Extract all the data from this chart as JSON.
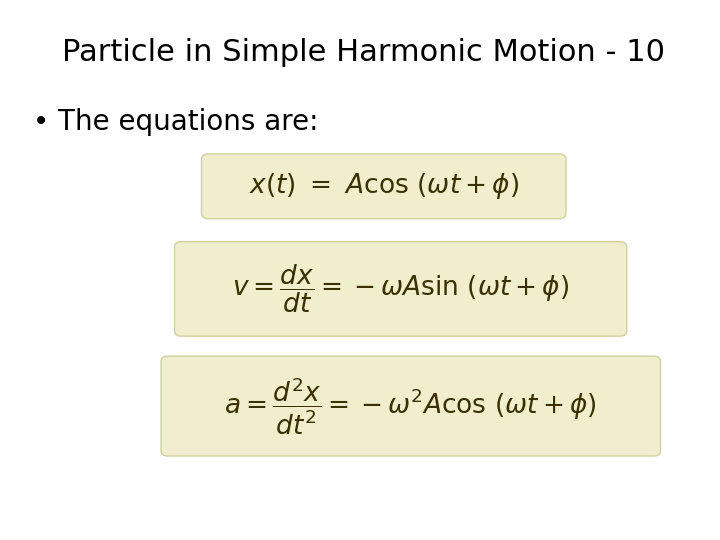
{
  "title": "Particle in Simple Harmonic Motion - 10",
  "bullet_text": "The equations are:",
  "eq1": "x(t)  =  A\\cos\\,(\\omega t + \\phi)",
  "eq2": "v = \\dfrac{dx}{dt} = -\\omega A\\sin\\,(\\omega t + \\phi)",
  "eq3": "a = \\dfrac{d^2x}{dt^2} = -\\omega^2 A\\cos\\,(\\omega t + \\phi)",
  "box_color": "#f0eecc",
  "box_edge_color": "#d4d0a0",
  "bg_color": "#ffffff",
  "title_color": "#000000",
  "text_color": "#000000",
  "eq_color": "#5a4a00",
  "title_fontsize": 22,
  "bullet_fontsize": 20,
  "eq_fontsize": 20
}
